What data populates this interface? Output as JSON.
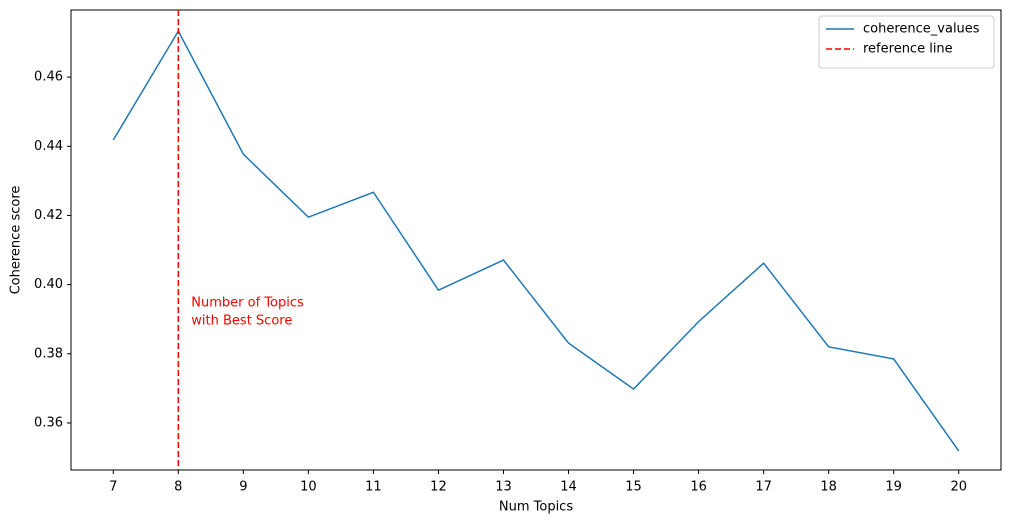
{
  "chart_data": {
    "type": "line",
    "x_label": "Num Topics",
    "y_label": "Coherence score",
    "x": [
      7,
      8,
      9,
      10,
      11,
      12,
      13,
      14,
      15,
      16,
      17,
      18,
      19,
      20
    ],
    "series": [
      {
        "name": "coherence_values",
        "color": "#1f77b4",
        "values": [
          0.4418,
          0.4733,
          0.4377,
          0.4195,
          0.4267,
          0.3984,
          0.4071,
          0.3831,
          0.3698,
          0.3893,
          0.4062,
          0.382,
          0.3785,
          0.3519
        ]
      }
    ],
    "reference_line": {
      "name": "reference line",
      "color": "#ff0000",
      "x": 8
    },
    "annotation": [
      "Number of Topics",
      "with Best Score"
    ],
    "xlim": [
      6.35,
      20.65
    ],
    "ylim": [
      0.3464,
      0.4794
    ],
    "xticks": [
      7,
      8,
      9,
      10,
      11,
      12,
      13,
      14,
      15,
      16,
      17,
      18,
      19,
      20
    ],
    "yticks": [
      0.36,
      0.38,
      {
        "value": 0.4,
        "label": "0.40"
      },
      0.42,
      0.44,
      0.46
    ],
    "grid": false,
    "legend": "upper right"
  }
}
